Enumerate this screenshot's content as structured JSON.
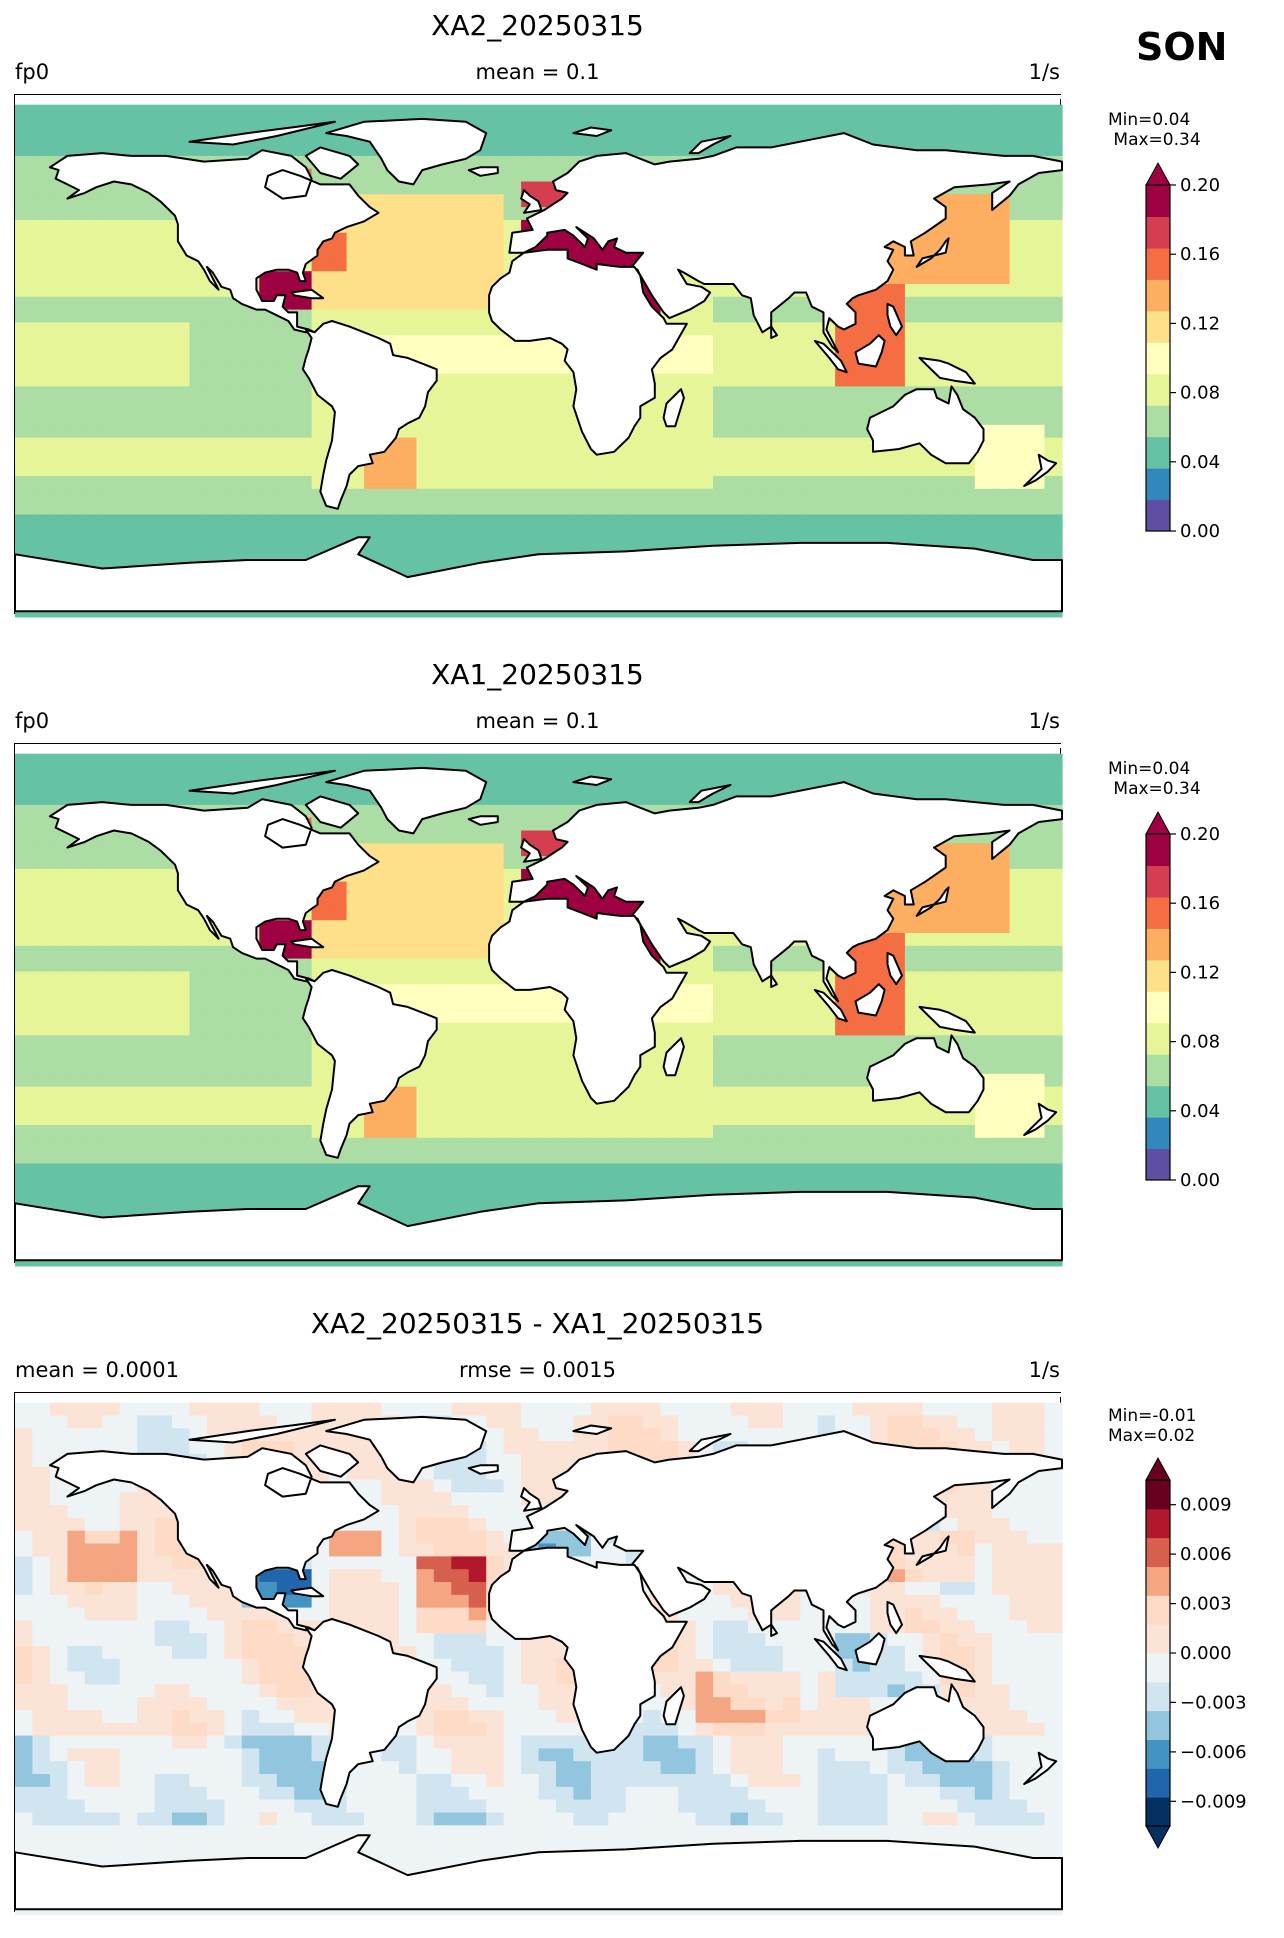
{
  "season": "SON",
  "colors": {
    "land": "#ffffff",
    "coast": "#000000",
    "spectral": [
      "#5e4fa2",
      "#3288bd",
      "#66c2a5",
      "#abdda4",
      "#e6f598",
      "#ffffbf",
      "#fee08b",
      "#fdae61",
      "#f46d43",
      "#d53e4f",
      "#9e0142"
    ],
    "rdbu": [
      "#053061",
      "#2166ac",
      "#4393c3",
      "#92c5de",
      "#d1e5f0",
      "#eef3f6",
      "#fbe3d6",
      "#fddbc7",
      "#f4a582",
      "#d6604d",
      "#b2182b",
      "#67001f"
    ]
  },
  "panels": [
    {
      "title": "XA2_20250315",
      "left": "fp0",
      "center": "mean = 0.1",
      "right": "1/s",
      "minmax": "Min=0.04\n Max=0.34",
      "colorbar": {
        "colormap": "spectral",
        "range": [
          0.0,
          0.2
        ],
        "extend": "max",
        "ticks": [
          "0.00",
          "0.04",
          "0.08",
          "0.12",
          "0.16",
          "0.20"
        ]
      }
    },
    {
      "title": "XA1_20250315",
      "left": "fp0",
      "center": "mean = 0.1",
      "right": "1/s",
      "minmax": "Min=0.04\n Max=0.34",
      "colorbar": {
        "colormap": "spectral",
        "range": [
          0.0,
          0.2
        ],
        "extend": "max",
        "ticks": [
          "0.00",
          "0.04",
          "0.08",
          "0.12",
          "0.16",
          "0.20"
        ]
      }
    },
    {
      "title": "XA2_20250315 - XA1_20250315",
      "left": "mean = 0.0001",
      "center": "rmse = 0.0015",
      "right": "1/s",
      "minmax": "Min=-0.01\nMax=0.02",
      "colorbar": {
        "colormap": "rdbu",
        "range": [
          -0.0105,
          0.0105
        ],
        "extend": "both",
        "ticks": [
          "−0.009",
          "−0.006",
          "−0.003",
          "0.000",
          "0.003",
          "0.006",
          "0.009"
        ]
      }
    }
  ]
}
